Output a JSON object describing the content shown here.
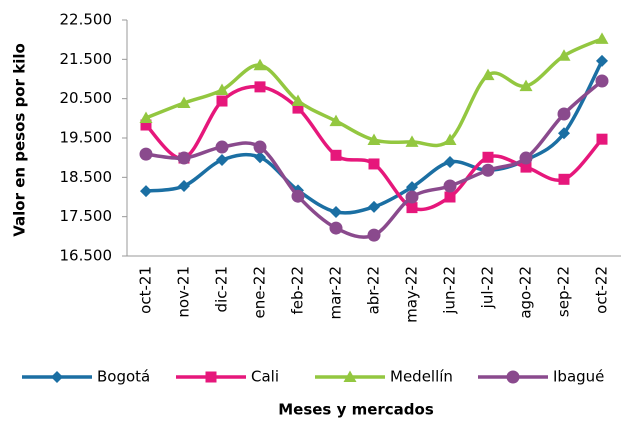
{
  "chart_data": {
    "type": "line",
    "x_label": "Meses  y mercados",
    "y_label": "Valor en pesos por kilo",
    "categories": [
      "oct-21",
      "nov-21",
      "dic-21",
      "ene-22",
      "feb-22",
      "mar-22",
      "abr-22",
      "may-22",
      "jun-22",
      "jul-22",
      "ago-22",
      "sep-22",
      "oct-22"
    ],
    "series": [
      {
        "name": "Bogotá",
        "color": "#1b6fa3",
        "marker": "diamond",
        "values": [
          18150,
          18280,
          18940,
          19010,
          18170,
          17620,
          17750,
          18250,
          18890,
          18680,
          18940,
          19620,
          21460
        ]
      },
      {
        "name": "Cali",
        "color": "#e6177b",
        "marker": "square",
        "values": [
          19830,
          18990,
          20440,
          20800,
          20260,
          19060,
          18840,
          17730,
          18000,
          19010,
          18760,
          18450,
          19470
        ]
      },
      {
        "name": "Medellín",
        "color": "#93c740",
        "marker": "triangle",
        "values": [
          20010,
          20390,
          20720,
          21350,
          20440,
          19930,
          19450,
          19400,
          19450,
          21100,
          20820,
          21590,
          22020
        ]
      },
      {
        "name": "Ibagué",
        "color": "#8a4a8d",
        "marker": "circle",
        "values": [
          19090,
          18990,
          19270,
          19270,
          18020,
          17210,
          17030,
          18000,
          18280,
          18680,
          18990,
          20110,
          20950
        ]
      }
    ],
    "ylim": [
      16500,
      22500
    ],
    "yticks": [
      {
        "value": 16500,
        "label": "16.500"
      },
      {
        "value": 17500,
        "label": "17.500"
      },
      {
        "value": 18500,
        "label": "18.500"
      },
      {
        "value": 19500,
        "label": "19.500"
      },
      {
        "value": 20500,
        "label": "20.500"
      },
      {
        "value": 21500,
        "label": "21.500"
      },
      {
        "value": 22500,
        "label": "22.500"
      }
    ],
    "grid": false,
    "legend": "bottom"
  }
}
